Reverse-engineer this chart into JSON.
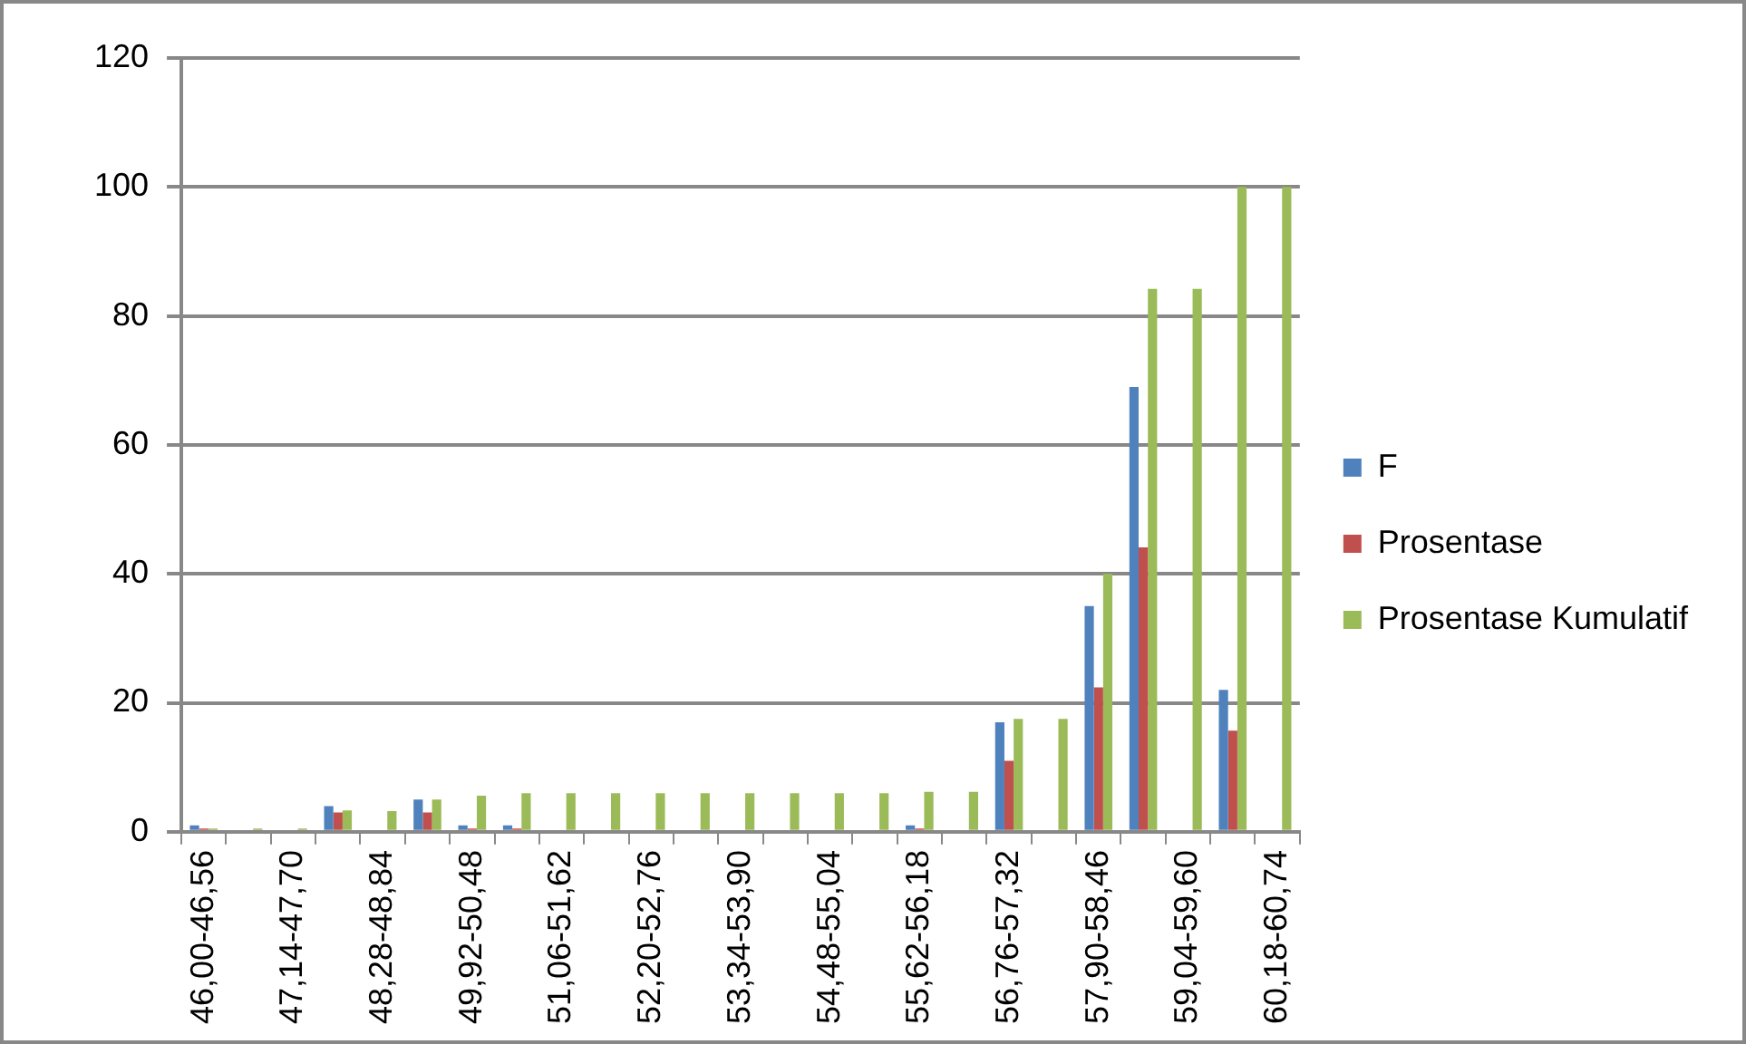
{
  "chart_data": {
    "type": "bar",
    "categories": [
      "46,00-46,56",
      null,
      "47,14-47,70",
      null,
      "48,28-48,84",
      null,
      "49,92-50,48",
      null,
      "51,06-51,62",
      null,
      "52,20-52,76",
      null,
      "53,34-53,90",
      null,
      "54,48-55,04",
      null,
      "55,62-56,18",
      null,
      "56,76-57,32",
      null,
      "57,90-58,46",
      null,
      "59,04-59,60",
      null,
      "60,18-60,74"
    ],
    "series": [
      {
        "name": "F",
        "color": "#4f81bd",
        "values": [
          1,
          0,
          0,
          4,
          0,
          5,
          1,
          1,
          0,
          0,
          0,
          0,
          0,
          0,
          0,
          0,
          1,
          0,
          17,
          0,
          35,
          69,
          0,
          22,
          0
        ]
      },
      {
        "name": "Prosentase",
        "color": "#c0504d",
        "values": [
          0.5,
          0,
          0,
          3,
          0,
          3,
          0.5,
          0.5,
          0,
          0,
          0,
          0,
          0,
          0,
          0,
          0,
          0.5,
          0,
          11,
          0,
          22.4,
          44.1,
          0,
          15.7,
          0
        ]
      },
      {
        "name": "Prosentase Kumulatif",
        "color": "#9bbb59",
        "values": [
          0.5,
          0.5,
          0.5,
          3.3,
          3.2,
          5,
          5.6,
          6,
          6,
          6,
          6,
          6,
          6,
          6,
          6,
          6,
          6.2,
          6.2,
          17.5,
          17.5,
          40,
          84.2,
          84.2,
          100,
          100
        ]
      }
    ],
    "ylim": [
      0,
      120
    ],
    "yticks": [
      0,
      20,
      40,
      60,
      80,
      100,
      120
    ],
    "grid": "y",
    "legend": "right"
  }
}
